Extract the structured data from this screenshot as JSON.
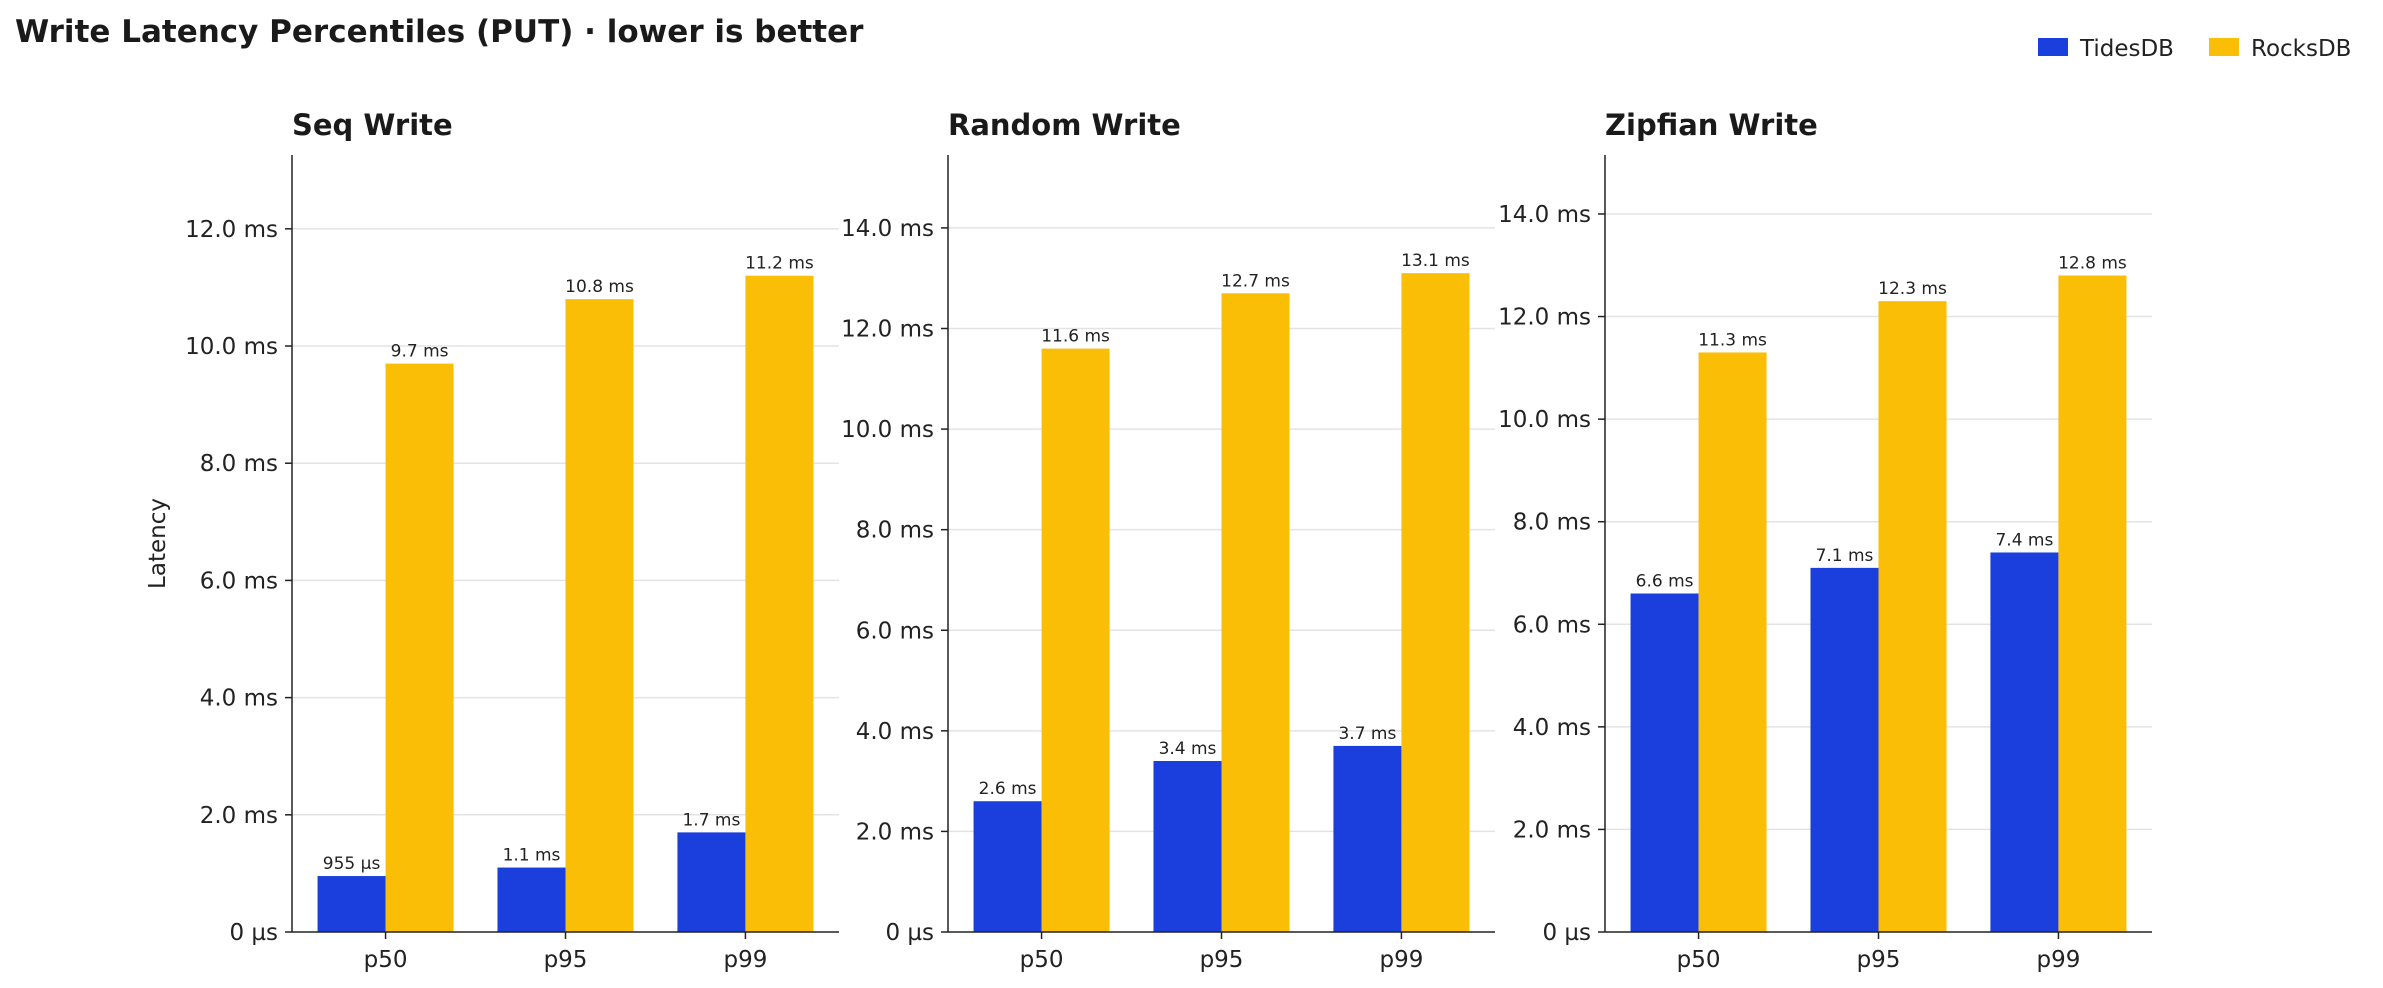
{
  "chart_data": {
    "title": "Write Latency Percentiles (PUT) · lower is better",
    "legend": {
      "placement": "top-right",
      "entries": [
        {
          "name": "TidesDB",
          "color": "#1a3fdd"
        },
        {
          "name": "RocksDB",
          "color": "#f9be05"
        }
      ]
    },
    "charts": [
      {
        "type": "bar",
        "title": "Seq Write",
        "ylabel": "Latency",
        "unit": "ms",
        "ylim": [
          0,
          13.26
        ],
        "yticks": [
          0,
          2,
          4,
          6,
          8,
          10,
          12
        ],
        "ytick_labels": [
          "0 µs",
          "2.0 ms",
          "4.0 ms",
          "6.0 ms",
          "8.0 ms",
          "10.0 ms",
          "12.0 ms"
        ],
        "categories": [
          "p50",
          "p95",
          "p99"
        ],
        "series": [
          {
            "name": "TidesDB",
            "values": [
              0.955,
              1.1,
              1.7
            ],
            "labels": [
              "955 µs",
              "1.1 ms",
              "1.7 ms"
            ]
          },
          {
            "name": "RocksDB",
            "values": [
              9.7,
              10.8,
              11.2
            ],
            "labels": [
              "9.7 ms",
              "10.8 ms",
              "11.2 ms"
            ]
          }
        ],
        "grid": true
      },
      {
        "type": "bar",
        "title": "Random Write",
        "ylabel": "",
        "unit": "ms",
        "ylim": [
          0,
          15.45
        ],
        "yticks": [
          0,
          2,
          4,
          6,
          8,
          10,
          12,
          14
        ],
        "ytick_labels": [
          "0 µs",
          "2.0 ms",
          "4.0 ms",
          "6.0 ms",
          "8.0 ms",
          "10.0 ms",
          "12.0 ms",
          "14.0 ms"
        ],
        "categories": [
          "p50",
          "p95",
          "p99"
        ],
        "series": [
          {
            "name": "TidesDB",
            "values": [
              2.6,
              3.4,
              3.7
            ],
            "labels": [
              "2.6 ms",
              "3.4 ms",
              "3.7 ms"
            ]
          },
          {
            "name": "RocksDB",
            "values": [
              11.6,
              12.7,
              13.1
            ],
            "labels": [
              "11.6 ms",
              "12.7 ms",
              "13.1 ms"
            ]
          }
        ],
        "grid": true
      },
      {
        "type": "bar",
        "title": "Zipfian Write",
        "ylabel": "",
        "unit": "ms",
        "ylim": [
          0,
          15.15
        ],
        "yticks": [
          0,
          2,
          4,
          6,
          8,
          10,
          12,
          14
        ],
        "ytick_labels": [
          "0 µs",
          "2.0 ms",
          "4.0 ms",
          "6.0 ms",
          "8.0 ms",
          "10.0 ms",
          "12.0 ms",
          "14.0 ms"
        ],
        "categories": [
          "p50",
          "p95",
          "p99"
        ],
        "series": [
          {
            "name": "TidesDB",
            "values": [
              6.6,
              7.1,
              7.4
            ],
            "labels": [
              "6.6 ms",
              "7.1 ms",
              "7.4 ms"
            ]
          },
          {
            "name": "RocksDB",
            "values": [
              11.3,
              12.3,
              12.8
            ],
            "labels": [
              "11.3 ms",
              "12.3 ms",
              "12.8 ms"
            ]
          }
        ],
        "grid": true
      }
    ]
  }
}
